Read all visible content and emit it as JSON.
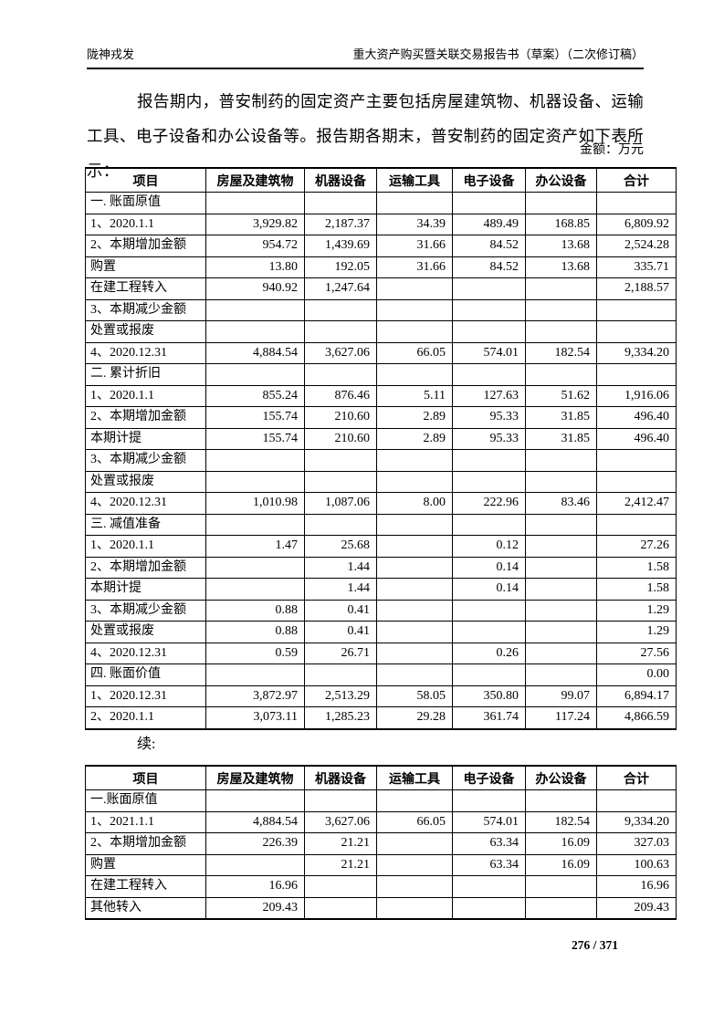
{
  "page": {
    "header_left": "陇神戎发",
    "header_right": "重大资产购买暨关联交易报告书（草案）（二次修订稿）",
    "intro_paragraph": "报告期内，普安制药的固定资产主要包括房屋建筑物、机器设备、运输工具、电子设备和办公设备等。报告期各期末，普安制药的固定资产如下表所示：",
    "unit_label": "金额：万元",
    "continued_label": "续:",
    "page_number": "276 / 371"
  },
  "table1": {
    "columns": [
      "项目",
      "房屋及建筑物",
      "机器设备",
      "运输工具",
      "电子设备",
      "办公设备",
      "合计"
    ],
    "rows": [
      {
        "label": "一. 账面原值",
        "level": 0,
        "values": [
          "",
          "",
          "",
          "",
          "",
          ""
        ]
      },
      {
        "label": "1、2020.1.1",
        "level": 0,
        "values": [
          "3,929.82",
          "2,187.37",
          "34.39",
          "489.49",
          "168.85",
          "6,809.92"
        ]
      },
      {
        "label": "2、本期增加金额",
        "level": 0,
        "values": [
          "954.72",
          "1,439.69",
          "31.66",
          "84.52",
          "13.68",
          "2,524.28"
        ]
      },
      {
        "label": "购置",
        "level": 1,
        "values": [
          "13.80",
          "192.05",
          "31.66",
          "84.52",
          "13.68",
          "335.71"
        ]
      },
      {
        "label": "在建工程转入",
        "level": 1,
        "values": [
          "940.92",
          "1,247.64",
          "",
          "",
          "",
          "2,188.57"
        ]
      },
      {
        "label": "3、本期减少金额",
        "level": 0,
        "values": [
          "",
          "",
          "",
          "",
          "",
          ""
        ]
      },
      {
        "label": "处置或报废",
        "level": 1,
        "values": [
          "",
          "",
          "",
          "",
          "",
          ""
        ]
      },
      {
        "label": "4、2020.12.31",
        "level": 0,
        "values": [
          "4,884.54",
          "3,627.06",
          "66.05",
          "574.01",
          "182.54",
          "9,334.20"
        ]
      },
      {
        "label": "二. 累计折旧",
        "level": 0,
        "values": [
          "",
          "",
          "",
          "",
          "",
          ""
        ]
      },
      {
        "label": "1、2020.1.1",
        "level": 0,
        "values": [
          "855.24",
          "876.46",
          "5.11",
          "127.63",
          "51.62",
          "1,916.06"
        ]
      },
      {
        "label": "2、本期增加金额",
        "level": 0,
        "values": [
          "155.74",
          "210.60",
          "2.89",
          "95.33",
          "31.85",
          "496.40"
        ]
      },
      {
        "label": "本期计提",
        "level": 1,
        "values": [
          "155.74",
          "210.60",
          "2.89",
          "95.33",
          "31.85",
          "496.40"
        ]
      },
      {
        "label": "3、本期减少金额",
        "level": 0,
        "values": [
          "",
          "",
          "",
          "",
          "",
          ""
        ]
      },
      {
        "label": "处置或报废",
        "level": 1,
        "values": [
          "",
          "",
          "",
          "",
          "",
          ""
        ]
      },
      {
        "label": "4、2020.12.31",
        "level": 0,
        "values": [
          "1,010.98",
          "1,087.06",
          "8.00",
          "222.96",
          "83.46",
          "2,412.47"
        ]
      },
      {
        "label": "三. 减值准备",
        "level": 0,
        "values": [
          "",
          "",
          "",
          "",
          "",
          ""
        ]
      },
      {
        "label": "1、2020.1.1",
        "level": 0,
        "values": [
          "1.47",
          "25.68",
          "",
          "0.12",
          "",
          "27.26"
        ]
      },
      {
        "label": "2、本期增加金额",
        "level": 0,
        "values": [
          "",
          "1.44",
          "",
          "0.14",
          "",
          "1.58"
        ]
      },
      {
        "label": "本期计提",
        "level": 1,
        "values": [
          "",
          "1.44",
          "",
          "0.14",
          "",
          "1.58"
        ]
      },
      {
        "label": "3、本期减少金额",
        "level": 0,
        "values": [
          "0.88",
          "0.41",
          "",
          "",
          "",
          "1.29"
        ]
      },
      {
        "label": "处置或报废",
        "level": 1,
        "values": [
          "0.88",
          "0.41",
          "",
          "",
          "",
          "1.29"
        ]
      },
      {
        "label": "4、2020.12.31",
        "level": 0,
        "values": [
          "0.59",
          "26.71",
          "",
          "0.26",
          "",
          "27.56"
        ]
      },
      {
        "label": "四. 账面价值",
        "level": 0,
        "values": [
          "",
          "",
          "",
          "",
          "",
          "0.00"
        ]
      },
      {
        "label": "1、2020.12.31",
        "level": 0,
        "values": [
          "3,872.97",
          "2,513.29",
          "58.05",
          "350.80",
          "99.07",
          "6,894.17"
        ]
      },
      {
        "label": "2、2020.1.1",
        "level": 0,
        "values": [
          "3,073.11",
          "1,285.23",
          "29.28",
          "361.74",
          "117.24",
          "4,866.59"
        ]
      }
    ]
  },
  "table2": {
    "columns": [
      "项目",
      "房屋及建筑物",
      "机器设备",
      "运输工具",
      "电子设备",
      "办公设备",
      "合计"
    ],
    "rows": [
      {
        "label": "一.账面原值",
        "level": 0,
        "values": [
          "",
          "",
          "",
          "",
          "",
          ""
        ]
      },
      {
        "label": "1、2021.1.1",
        "level": 0,
        "values": [
          "4,884.54",
          "3,627.06",
          "66.05",
          "574.01",
          "182.54",
          "9,334.20"
        ]
      },
      {
        "label": "2、本期增加金额",
        "level": 0,
        "values": [
          "226.39",
          "21.21",
          "",
          "63.34",
          "16.09",
          "327.03"
        ]
      },
      {
        "label": "购置",
        "level": 1,
        "values": [
          "",
          "21.21",
          "",
          "63.34",
          "16.09",
          "100.63"
        ]
      },
      {
        "label": "在建工程转入",
        "level": 1,
        "values": [
          "16.96",
          "",
          "",
          "",
          "",
          "16.96"
        ]
      },
      {
        "label": "其他转入",
        "level": 1,
        "values": [
          "209.43",
          "",
          "",
          "",
          "",
          "209.43"
        ]
      }
    ]
  }
}
